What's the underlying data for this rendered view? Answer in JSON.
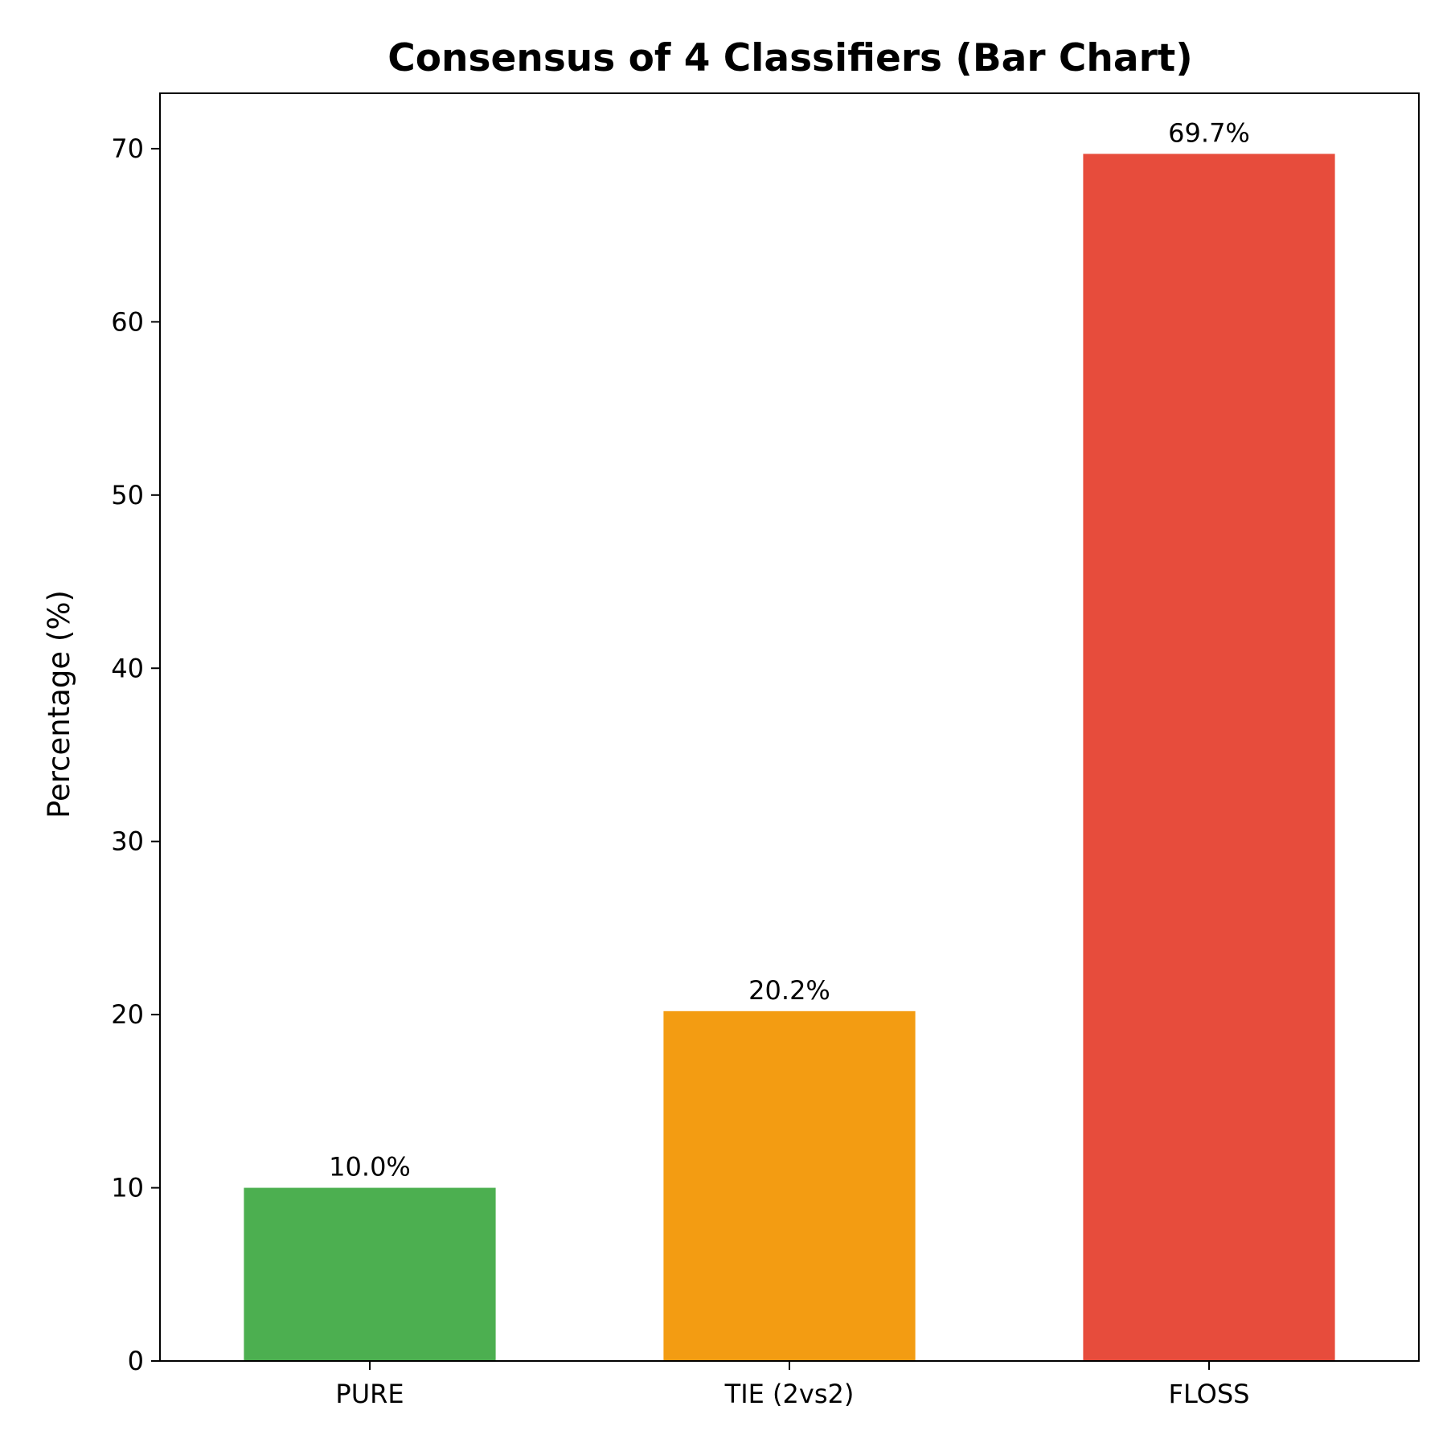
{
  "chart_data": {
    "type": "bar",
    "title": "Consensus of 4 Classifiers (Bar Chart)",
    "xlabel": "",
    "ylabel": "Percentage (%)",
    "categories": [
      "PURE",
      "TIE (2vs2)",
      "FLOSS"
    ],
    "values": [
      10.0,
      20.2,
      69.7
    ],
    "data_labels": [
      "10.0%",
      "20.2%",
      "69.7%"
    ],
    "colors": [
      "#4caf50",
      "#f39c12",
      "#e74c3c"
    ],
    "ylim": [
      0,
      73.2
    ],
    "yticks": [
      0,
      10,
      20,
      30,
      40,
      50,
      60,
      70
    ],
    "grid": false,
    "legend": false
  }
}
